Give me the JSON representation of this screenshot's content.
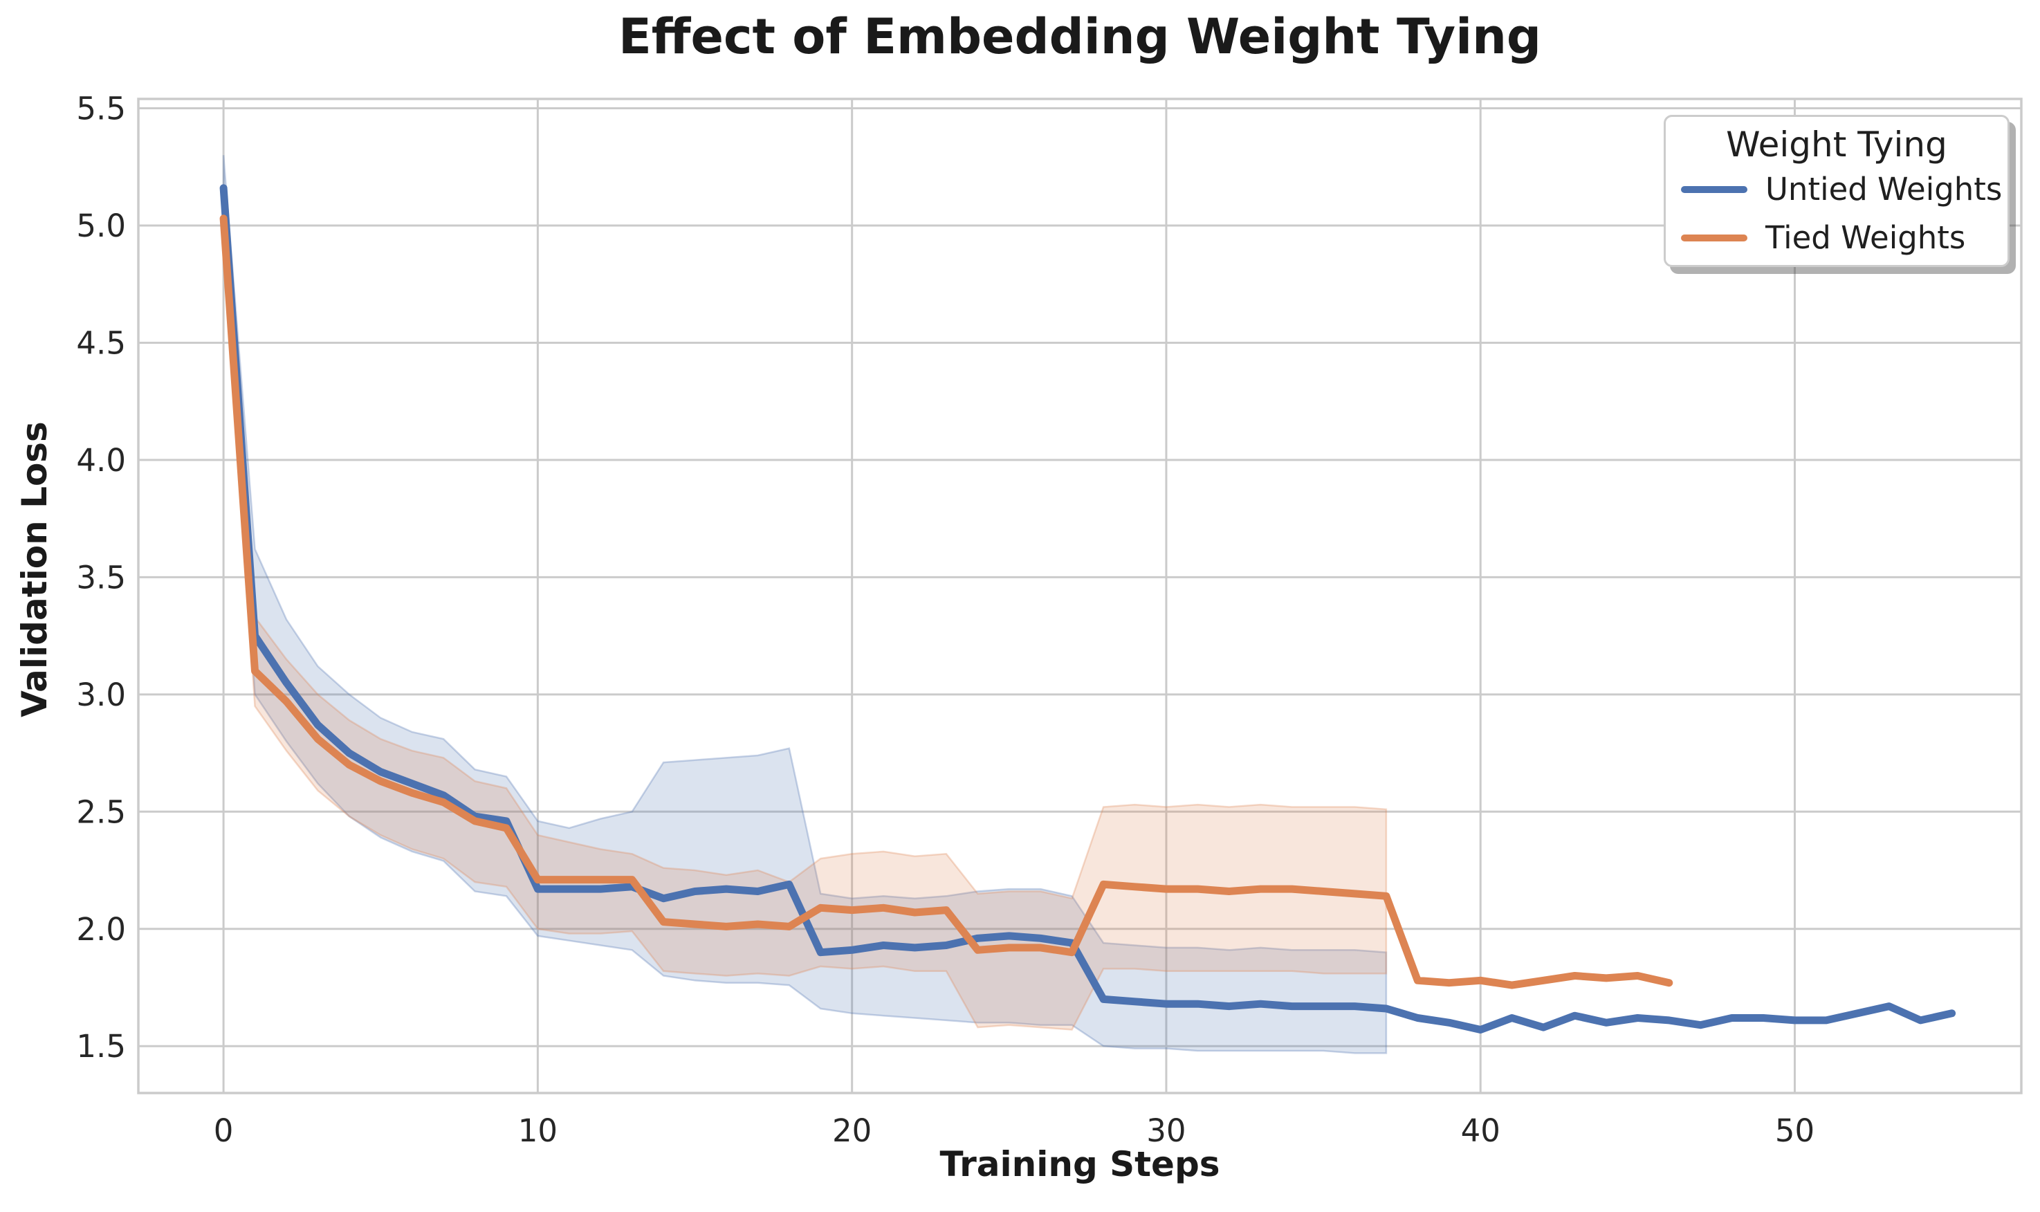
{
  "styles": {
    "background": "#ffffff",
    "grid_color": "#cbcbcb",
    "spine_color": "#cbcbcb",
    "tick_text_color": "#262626",
    "title_color": "#1a1a1a",
    "band_alpha": 0.2
  },
  "chart_data": {
    "type": "line",
    "title": "Effect of Embedding Weight Tying",
    "xlabel": "Training Steps",
    "ylabel": "Validation Loss",
    "x_ticks": [
      0,
      10,
      20,
      30,
      40,
      50
    ],
    "y_ticks": [
      1.5,
      2.0,
      2.5,
      3.0,
      3.5,
      4.0,
      4.5,
      5.0,
      5.5
    ],
    "xlim": [
      -2.71,
      57.21
    ],
    "ylim": [
      1.3,
      5.54
    ],
    "grid": true,
    "legend": {
      "title": "Weight Tying",
      "position": "upper right"
    },
    "series": [
      {
        "name": "Untied Weights",
        "color": "#4C72B0",
        "x": [
          0,
          1,
          2,
          3,
          4,
          5,
          6,
          7,
          8,
          9,
          10,
          11,
          12,
          13,
          14,
          15,
          16,
          17,
          18,
          19,
          20,
          21,
          22,
          23,
          24,
          25,
          26,
          27,
          28,
          29,
          30,
          31,
          32,
          33,
          34,
          35,
          36,
          37,
          38,
          39,
          40,
          41,
          42,
          43,
          44,
          45,
          46,
          47,
          48,
          49,
          50,
          51,
          52,
          53,
          54,
          55
        ],
        "values": [
          5.16,
          3.25,
          3.05,
          2.87,
          2.75,
          2.67,
          2.62,
          2.57,
          2.48,
          2.46,
          2.17,
          2.17,
          2.17,
          2.18,
          2.13,
          2.16,
          2.17,
          2.16,
          2.19,
          1.9,
          1.91,
          1.93,
          1.92,
          1.93,
          1.96,
          1.97,
          1.96,
          1.94,
          1.7,
          1.69,
          1.68,
          1.68,
          1.67,
          1.68,
          1.67,
          1.67,
          1.67,
          1.66,
          1.62,
          1.6,
          1.57,
          1.62,
          1.58,
          1.63,
          1.6,
          1.62,
          1.61,
          1.59,
          1.62,
          1.62,
          1.61,
          1.61,
          1.64,
          1.67,
          1.61,
          1.64
        ],
        "band_x": [
          0,
          1,
          2,
          3,
          4,
          5,
          6,
          7,
          8,
          9,
          10,
          11,
          12,
          13,
          14,
          15,
          16,
          17,
          18,
          19,
          20,
          21,
          22,
          23,
          24,
          25,
          26,
          27,
          28,
          29,
          30,
          31,
          32,
          33,
          34,
          35,
          36,
          37
        ],
        "band_low": [
          4.95,
          3.0,
          2.8,
          2.62,
          2.48,
          2.39,
          2.33,
          2.29,
          2.16,
          2.14,
          1.97,
          1.95,
          1.93,
          1.91,
          1.8,
          1.78,
          1.77,
          1.77,
          1.76,
          1.66,
          1.64,
          1.63,
          1.62,
          1.61,
          1.6,
          1.6,
          1.59,
          1.59,
          1.5,
          1.49,
          1.49,
          1.48,
          1.48,
          1.48,
          1.48,
          1.48,
          1.47,
          1.47
        ],
        "band_high": [
          5.3,
          3.62,
          3.32,
          3.12,
          3.0,
          2.9,
          2.84,
          2.81,
          2.68,
          2.65,
          2.46,
          2.43,
          2.47,
          2.5,
          2.71,
          2.72,
          2.73,
          2.74,
          2.77,
          2.15,
          2.13,
          2.14,
          2.13,
          2.14,
          2.16,
          2.17,
          2.17,
          2.14,
          1.94,
          1.93,
          1.92,
          1.92,
          1.91,
          1.92,
          1.91,
          1.91,
          1.91,
          1.9
        ]
      },
      {
        "name": "Tied Weights",
        "color": "#DD8452",
        "x": [
          0,
          1,
          2,
          3,
          4,
          5,
          6,
          7,
          8,
          9,
          10,
          11,
          12,
          13,
          14,
          15,
          16,
          17,
          18,
          19,
          20,
          21,
          22,
          23,
          24,
          25,
          26,
          27,
          28,
          29,
          30,
          31,
          32,
          33,
          34,
          35,
          36,
          37,
          38,
          39,
          40,
          41,
          42,
          43,
          44,
          45,
          46
        ],
        "values": [
          5.03,
          3.1,
          2.97,
          2.81,
          2.7,
          2.63,
          2.58,
          2.54,
          2.46,
          2.43,
          2.21,
          2.21,
          2.21,
          2.21,
          2.03,
          2.02,
          2.01,
          2.02,
          2.01,
          2.09,
          2.08,
          2.09,
          2.07,
          2.08,
          1.91,
          1.92,
          1.92,
          1.9,
          2.19,
          2.18,
          2.17,
          2.17,
          2.16,
          2.17,
          2.17,
          2.16,
          2.15,
          2.14,
          1.78,
          1.77,
          1.78,
          1.76,
          1.78,
          1.8,
          1.79,
          1.8,
          1.77
        ],
        "band_x": [
          0,
          1,
          2,
          3,
          4,
          5,
          6,
          7,
          8,
          9,
          10,
          11,
          12,
          13,
          14,
          15,
          16,
          17,
          18,
          19,
          20,
          21,
          22,
          23,
          24,
          25,
          26,
          27,
          28,
          29,
          30,
          31,
          32,
          33,
          34,
          35,
          36,
          37
        ],
        "band_low": [
          4.9,
          2.95,
          2.76,
          2.59,
          2.48,
          2.4,
          2.34,
          2.3,
          2.2,
          2.18,
          2.0,
          1.98,
          1.98,
          1.99,
          1.82,
          1.81,
          1.8,
          1.81,
          1.8,
          1.84,
          1.83,
          1.84,
          1.82,
          1.82,
          1.58,
          1.59,
          1.58,
          1.57,
          1.83,
          1.83,
          1.82,
          1.82,
          1.82,
          1.82,
          1.82,
          1.81,
          1.81,
          1.81
        ],
        "band_high": [
          5.12,
          3.33,
          3.15,
          3.0,
          2.89,
          2.81,
          2.76,
          2.73,
          2.63,
          2.6,
          2.4,
          2.37,
          2.34,
          2.32,
          2.26,
          2.25,
          2.23,
          2.25,
          2.2,
          2.3,
          2.32,
          2.33,
          2.31,
          2.32,
          2.15,
          2.16,
          2.16,
          2.13,
          2.52,
          2.53,
          2.52,
          2.53,
          2.52,
          2.53,
          2.52,
          2.52,
          2.52,
          2.51
        ]
      }
    ]
  }
}
